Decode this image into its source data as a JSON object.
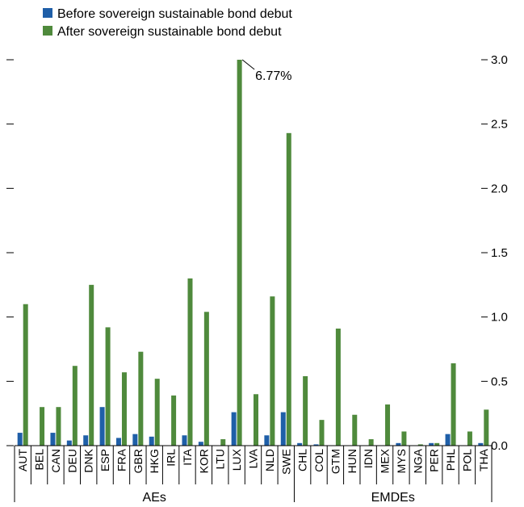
{
  "chart_data": {
    "type": "bar",
    "categories": [
      "AUT",
      "BEL",
      "CAN",
      "DEU",
      "DNK",
      "ESP",
      "FRA",
      "GBR",
      "HKG",
      "IRL",
      "ITA",
      "KOR",
      "LTU",
      "LUX",
      "LVA",
      "NLD",
      "SWE",
      "CHL",
      "COL",
      "GTM",
      "HUN",
      "IDN",
      "MEX",
      "MYS",
      "NGA",
      "PER",
      "PHL",
      "POL",
      "THA"
    ],
    "groups": [
      {
        "label": "AEs",
        "categories": [
          "AUT",
          "BEL",
          "CAN",
          "DEU",
          "DNK",
          "ESP",
          "FRA",
          "GBR",
          "HKG",
          "IRL",
          "ITA",
          "KOR",
          "LTU",
          "LUX",
          "LVA",
          "NLD",
          "SWE"
        ]
      },
      {
        "label": "EMDEs",
        "categories": [
          "CHL",
          "COL",
          "GTM",
          "HUN",
          "IDN",
          "MEX",
          "MYS",
          "NGA",
          "PER",
          "PHL",
          "POL",
          "THA"
        ]
      }
    ],
    "series": [
      {
        "name": "Before sovereign sustainable bond debut",
        "color": "#1f5fa8",
        "values": [
          0.1,
          0.0,
          0.1,
          0.04,
          0.08,
          0.3,
          0.06,
          0.09,
          0.07,
          0.0,
          0.08,
          0.03,
          0.0,
          0.26,
          0.0,
          0.08,
          0.26,
          0.02,
          0.01,
          0.0,
          0.0,
          0.0,
          0.0,
          0.02,
          0.0,
          0.02,
          0.09,
          0.0,
          0.02
        ]
      },
      {
        "name": "After sovereign sustainable bond debut",
        "color": "#4f8a3c",
        "values": [
          1.1,
          0.3,
          0.3,
          0.62,
          1.25,
          0.92,
          0.57,
          0.73,
          0.52,
          0.39,
          1.3,
          1.04,
          0.05,
          3.0,
          0.4,
          1.16,
          2.43,
          0.54,
          0.2,
          0.91,
          0.24,
          0.05,
          0.32,
          0.11,
          0.01,
          0.02,
          0.64,
          0.11,
          0.28
        ]
      }
    ],
    "ylim": [
      0,
      3.0
    ],
    "yticks": [
      0.0,
      0.5,
      1.0,
      1.5,
      2.0,
      2.5,
      3.0
    ],
    "ytick_labels": [
      "0.0",
      "0.5",
      "1.0",
      "1.5",
      "2.0",
      "2.5",
      "3.0"
    ],
    "annotation": {
      "text": "6.77%",
      "category": "LUX",
      "series": "After sovereign sustainable bond debut"
    },
    "legend_position": "top-left",
    "grid": false
  }
}
